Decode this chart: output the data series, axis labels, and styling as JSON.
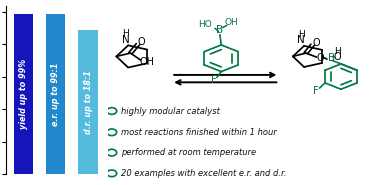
{
  "bars": [
    {
      "label": "yield up to 99%",
      "value": 99,
      "color": "#1515bb",
      "x": 0
    },
    {
      "label": "e.r. up to 99:1",
      "value": 99,
      "color": "#2288cc",
      "x": 1
    },
    {
      "label": "d.r. up to 18:1",
      "value": 89,
      "color": "#55bbdd",
      "x": 2
    }
  ],
  "yticks": [
    0,
    20,
    40,
    60,
    80,
    100
  ],
  "ylim": [
    0,
    104
  ],
  "bar_width": 0.6,
  "bullets": [
    "highly modular catalyst",
    "most reactions finished within 1 hour",
    "performed at room temperature",
    "20 examples with excellent e.r. and d.r."
  ],
  "bullet_color": "#007744",
  "bullet_text_color": "#111111",
  "background": "#ffffff",
  "axis_label_fontsize": 7.5,
  "bar_text_fontsize": 5.8,
  "bullet_fontsize": 6.0,
  "green": "#007744"
}
